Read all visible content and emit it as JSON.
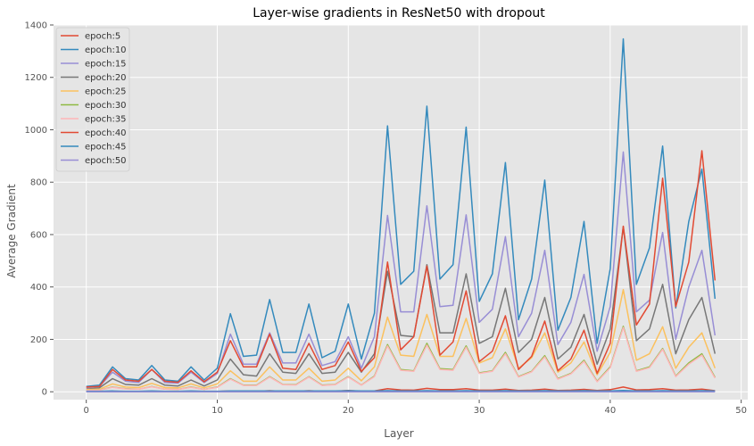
{
  "chart_data": {
    "type": "line",
    "title": "Layer-wise gradients in ResNet50 with dropout",
    "xlabel": "Layer",
    "ylabel": "Average Gradient",
    "xlim": [
      -2.5,
      50.5
    ],
    "ylim": [
      -30,
      1400
    ],
    "xticks": [
      0,
      10,
      20,
      30,
      40,
      50
    ],
    "yticks": [
      0,
      200,
      400,
      600,
      800,
      1000,
      1200,
      1400
    ],
    "grid": true,
    "legend_position": "top-left",
    "x": [
      0,
      1,
      2,
      3,
      4,
      5,
      6,
      7,
      8,
      9,
      10,
      11,
      12,
      13,
      14,
      15,
      16,
      17,
      18,
      19,
      20,
      21,
      22,
      23,
      24,
      25,
      26,
      27,
      28,
      29,
      30,
      31,
      32,
      33,
      34,
      35,
      36,
      37,
      38,
      39,
      40,
      41,
      42,
      43,
      44,
      45,
      46,
      47,
      48
    ],
    "series": [
      {
        "name": "epoch:5",
        "color": "#e24a33",
        "values": [
          1,
          1,
          2,
          1,
          1,
          2,
          1,
          1,
          2,
          1,
          1,
          3,
          2,
          2,
          4,
          2,
          2,
          4,
          2,
          2,
          5,
          2,
          3,
          12,
          7,
          6,
          13,
          8,
          8,
          12,
          6,
          6,
          10,
          5,
          6,
          10,
          5,
          6,
          9,
          5,
          8,
          18,
          7,
          8,
          12,
          6,
          7,
          10,
          4
        ]
      },
      {
        "name": "epoch:10",
        "color": "#348abd",
        "values": [
          20,
          25,
          95,
          50,
          45,
          100,
          45,
          40,
          95,
          45,
          90,
          298,
          135,
          140,
          352,
          150,
          150,
          335,
          130,
          155,
          335,
          125,
          300,
          1015,
          410,
          460,
          1090,
          430,
          485,
          1010,
          345,
          450,
          875,
          275,
          430,
          808,
          235,
          360,
          650,
          185,
          470,
          1347,
          410,
          550,
          938,
          320,
          650,
          850,
          355
        ]
      },
      {
        "name": "epoch:15",
        "color": "#988ed5",
        "values": [
          15,
          20,
          75,
          40,
          35,
          85,
          35,
          33,
          75,
          35,
          70,
          220,
          105,
          105,
          225,
          110,
          110,
          220,
          100,
          115,
          210,
          90,
          210,
          673,
          305,
          305,
          710,
          325,
          330,
          675,
          265,
          315,
          592,
          210,
          300,
          540,
          180,
          265,
          448,
          155,
          325,
          915,
          305,
          350,
          608,
          200,
          400,
          540,
          215
        ]
      },
      {
        "name": "epoch:20",
        "color": "#777777",
        "values": [
          10,
          15,
          50,
          28,
          25,
          50,
          25,
          22,
          45,
          22,
          45,
          125,
          65,
          60,
          145,
          75,
          70,
          145,
          70,
          75,
          150,
          75,
          145,
          460,
          215,
          210,
          485,
          225,
          225,
          450,
          185,
          210,
          395,
          150,
          200,
          360,
          125,
          170,
          295,
          105,
          240,
          630,
          195,
          240,
          410,
          145,
          275,
          360,
          145
        ]
      },
      {
        "name": "epoch:25",
        "color": "#fbc15e",
        "values": [
          8,
          10,
          30,
          18,
          16,
          32,
          16,
          15,
          30,
          15,
          30,
          80,
          40,
          40,
          95,
          45,
          45,
          90,
          40,
          45,
          90,
          42,
          95,
          285,
          140,
          135,
          295,
          135,
          135,
          280,
          110,
          130,
          240,
          90,
          130,
          225,
          75,
          110,
          190,
          65,
          150,
          390,
          120,
          145,
          248,
          90,
          170,
          225,
          90
        ]
      },
      {
        "name": "epoch:30",
        "color": "#8eba42",
        "values": [
          5,
          6,
          18,
          12,
          10,
          20,
          10,
          9,
          18,
          9,
          18,
          50,
          25,
          25,
          58,
          28,
          27,
          58,
          25,
          28,
          58,
          26,
          60,
          180,
          85,
          80,
          185,
          88,
          85,
          175,
          72,
          80,
          150,
          58,
          78,
          138,
          50,
          70,
          120,
          40,
          95,
          250,
          80,
          95,
          165,
          60,
          110,
          145,
          55
        ]
      },
      {
        "name": "epoch:35",
        "color": "#ffb5b8",
        "values": [
          5,
          6,
          17,
          11,
          10,
          19,
          10,
          9,
          17,
          9,
          17,
          48,
          24,
          24,
          56,
          27,
          26,
          56,
          24,
          27,
          56,
          25,
          58,
          175,
          82,
          78,
          178,
          85,
          82,
          170,
          70,
          78,
          145,
          56,
          76,
          133,
          48,
          68,
          116,
          38,
          92,
          245,
          78,
          92,
          162,
          58,
          105,
          140,
          52
        ]
      },
      {
        "name": "epoch:40",
        "color": "#e24a33",
        "values": [
          18,
          20,
          85,
          45,
          40,
          85,
          40,
          36,
          80,
          38,
          75,
          195,
          95,
          95,
          220,
          90,
          85,
          185,
          85,
          100,
          190,
          78,
          130,
          495,
          160,
          210,
          480,
          140,
          190,
          385,
          115,
          155,
          290,
          85,
          135,
          270,
          80,
          125,
          235,
          70,
          185,
          632,
          255,
          335,
          815,
          325,
          495,
          920,
          425
        ]
      },
      {
        "name": "epoch:45",
        "color": "#348abd",
        "values": [
          2,
          2,
          3,
          2,
          2,
          3,
          2,
          2,
          3,
          2,
          2,
          3,
          3,
          3,
          3,
          3,
          3,
          3,
          3,
          3,
          4,
          3,
          3,
          4,
          3,
          3,
          4,
          3,
          3,
          4,
          3,
          3,
          4,
          3,
          3,
          4,
          3,
          3,
          4,
          3,
          3,
          5,
          3,
          3,
          4,
          3,
          3,
          4,
          3
        ]
      },
      {
        "name": "epoch:50",
        "color": "#988ed5",
        "values": [
          0,
          0,
          0,
          0,
          0,
          0,
          0,
          0,
          0,
          0,
          0,
          0,
          0,
          0,
          0,
          0,
          0,
          0,
          0,
          0,
          0,
          0,
          0,
          0,
          0,
          0,
          0,
          0,
          0,
          0,
          0,
          0,
          0,
          0,
          0,
          0,
          0,
          0,
          0,
          0,
          0,
          0,
          0,
          0,
          0,
          0,
          0,
          0,
          0
        ]
      }
    ]
  }
}
